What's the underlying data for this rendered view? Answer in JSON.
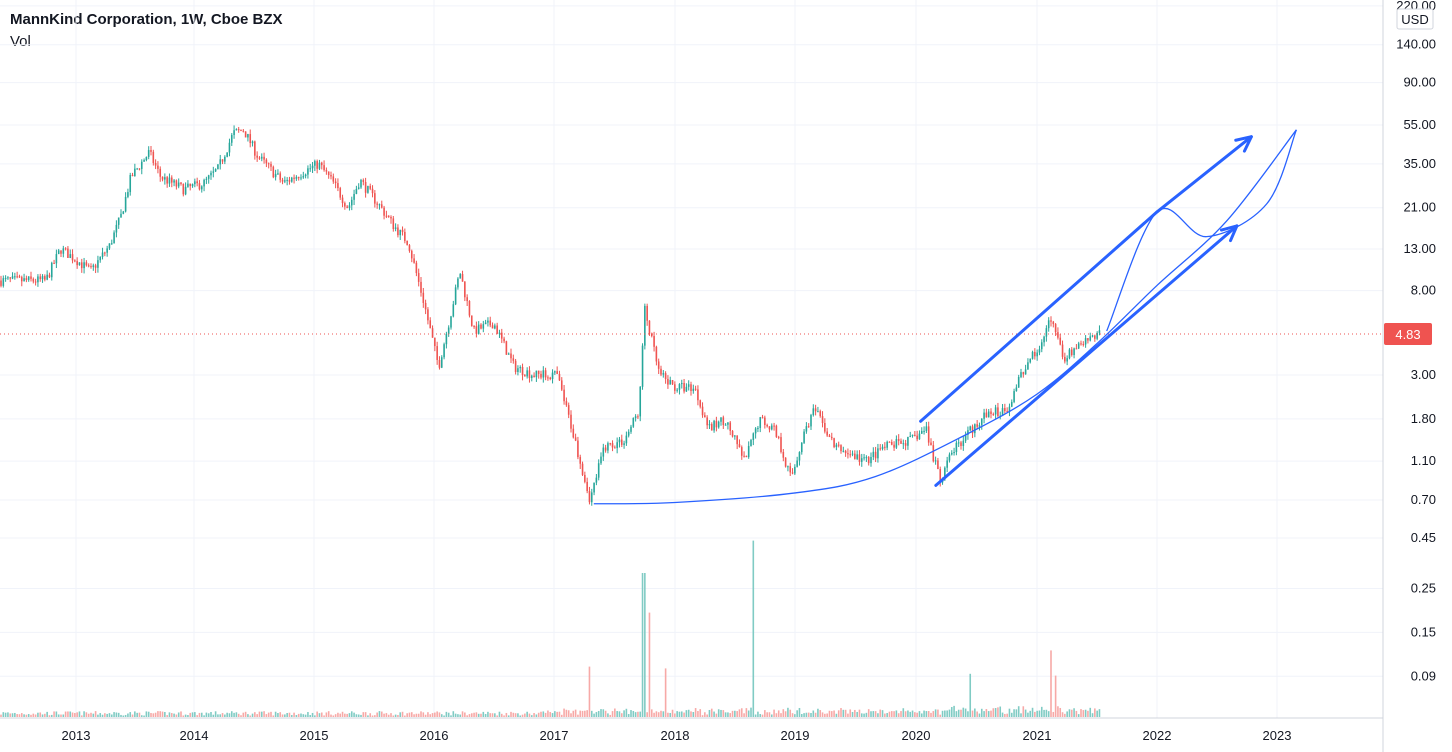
{
  "legend": {
    "title": "MannKind Corporation, 1W, Cboe BZX",
    "volume_label": "Vol"
  },
  "currency": "USD",
  "last_price_label": "4.83",
  "colors": {
    "up": "#26a69a",
    "down": "#ef5350",
    "vol_up": "#80cbc4",
    "vol_down": "#f7a9a7",
    "drawing": "#2962ff",
    "price_line": "#ef5350",
    "grid": "#f0f3fa"
  },
  "chart_data": {
    "type": "candlestick",
    "scale": "log",
    "x_labels": [
      "2013",
      "2014",
      "2015",
      "2016",
      "2017",
      "2018",
      "2019",
      "2020",
      "2021",
      "2022",
      "2023"
    ],
    "y_ticks": [
      "220.00",
      "140.00",
      "90.00",
      "55.00",
      "35.00",
      "21.00",
      "13.00",
      "8.00",
      "4.83",
      "3.00",
      "1.80",
      "1.10",
      "0.70",
      "0.45",
      "0.25",
      "0.15",
      "0.09"
    ],
    "last_price": 4.83,
    "price_path": [
      [
        "2012-10-01",
        9.0
      ],
      [
        "2012-11-15",
        13.0
      ],
      [
        "2013-01-01",
        11.5
      ],
      [
        "2013-02-15",
        10.0
      ],
      [
        "2013-04-15",
        13.5
      ],
      [
        "2013-05-20",
        19.0
      ],
      [
        "2013-06-20",
        30.0
      ],
      [
        "2013-08-15",
        40.0
      ],
      [
        "2013-09-20",
        30.0
      ],
      [
        "2013-12-01",
        26.0
      ],
      [
        "2014-02-01",
        28.0
      ],
      [
        "2014-03-15",
        33.0
      ],
      [
        "2014-05-01",
        50.0
      ],
      [
        "2014-06-01",
        52.0
      ],
      [
        "2014-07-15",
        38.0
      ],
      [
        "2014-10-01",
        28.0
      ],
      [
        "2014-12-01",
        32.0
      ],
      [
        "2015-01-15",
        35.0
      ],
      [
        "2015-03-01",
        28.0
      ],
      [
        "2015-04-15",
        21.0
      ],
      [
        "2015-05-20",
        29.0
      ],
      [
        "2015-07-15",
        22.0
      ],
      [
        "2015-09-01",
        17.0
      ],
      [
        "2015-10-15",
        14.0
      ],
      [
        "2015-12-01",
        7.0
      ],
      [
        "2016-01-15",
        3.3
      ],
      [
        "2016-02-20",
        6.0
      ],
      [
        "2016-03-20",
        10.0
      ],
      [
        "2016-05-01",
        5.0
      ],
      [
        "2016-07-01",
        5.5
      ],
      [
        "2016-09-01",
        3.3
      ],
      [
        "2016-11-01",
        3.0
      ],
      [
        "2017-01-10",
        3.0
      ],
      [
        "2017-03-01",
        1.5
      ],
      [
        "2017-04-20",
        0.7
      ],
      [
        "2017-06-01",
        1.3
      ],
      [
        "2017-08-01",
        1.4
      ],
      [
        "2017-09-15",
        2.0
      ],
      [
        "2017-10-01",
        6.5
      ],
      [
        "2017-11-15",
        3.0
      ],
      [
        "2018-01-01",
        2.6
      ],
      [
        "2018-03-01",
        2.6
      ],
      [
        "2018-04-15",
        1.6
      ],
      [
        "2018-06-01",
        1.8
      ],
      [
        "2018-08-01",
        1.1
      ],
      [
        "2018-09-15",
        1.8
      ],
      [
        "2018-11-01",
        1.6
      ],
      [
        "2018-12-20",
        0.9
      ],
      [
        "2019-02-01",
        1.6
      ],
      [
        "2019-03-01",
        2.0
      ],
      [
        "2019-05-01",
        1.3
      ],
      [
        "2019-08-01",
        1.1
      ],
      [
        "2019-10-01",
        1.3
      ],
      [
        "2019-12-15",
        1.4
      ],
      [
        "2020-02-01",
        1.6
      ],
      [
        "2020-03-15",
        0.85
      ],
      [
        "2020-04-15",
        1.2
      ],
      [
        "2020-06-01",
        1.5
      ],
      [
        "2020-08-01",
        1.9
      ],
      [
        "2020-10-01",
        2.0
      ],
      [
        "2020-12-01",
        3.5
      ],
      [
        "2021-01-15",
        4.2
      ],
      [
        "2021-02-15",
        6.0
      ],
      [
        "2021-03-20",
        3.6
      ],
      [
        "2021-05-15",
        4.3
      ],
      [
        "2021-07-15",
        4.83
      ]
    ],
    "volume_spikes": [
      [
        "2017-04-20",
        0.28
      ],
      [
        "2017-09-28",
        0.8
      ],
      [
        "2017-10-15",
        0.58
      ],
      [
        "2017-12-01",
        0.27
      ],
      [
        "2018-08-25",
        0.98
      ],
      [
        "2020-06-15",
        0.24
      ],
      [
        "2021-02-15",
        0.37
      ],
      [
        "2021-03-01",
        0.23
      ]
    ],
    "drawings": {
      "rounded_bottom": [
        [
          "2017-05-01",
          0.67
        ],
        [
          "2018-01-01",
          0.68
        ],
        [
          "2019-01-01",
          0.76
        ],
        [
          "2019-09-01",
          0.92
        ],
        [
          "2020-06-01",
          1.5
        ],
        [
          "2021-01-01",
          2.4
        ],
        [
          "2021-07-01",
          4.3
        ],
        [
          "2022-01-01",
          8.5
        ],
        [
          "2022-08-01",
          18.0
        ],
        [
          "2023-03-01",
          52.0
        ]
      ],
      "channel_upper": [
        [
          "2020-01-15",
          1.75
        ],
        [
          "2022-01-01",
          20.0
        ]
      ],
      "channel_lower": [
        [
          "2020-03-01",
          0.83
        ],
        [
          "2022-09-01",
          17.0
        ]
      ],
      "arrow_upper": [
        [
          "2022-01-01",
          20.0
        ],
        [
          "2022-10-15",
          48.0
        ]
      ],
      "projection_curve": [
        [
          "2021-08-01",
          5.0
        ],
        [
          "2022-01-01",
          20.0
        ],
        [
          "2022-06-01",
          15.0
        ],
        [
          "2022-12-01",
          22.0
        ],
        [
          "2023-03-01",
          52.0
        ]
      ]
    }
  }
}
